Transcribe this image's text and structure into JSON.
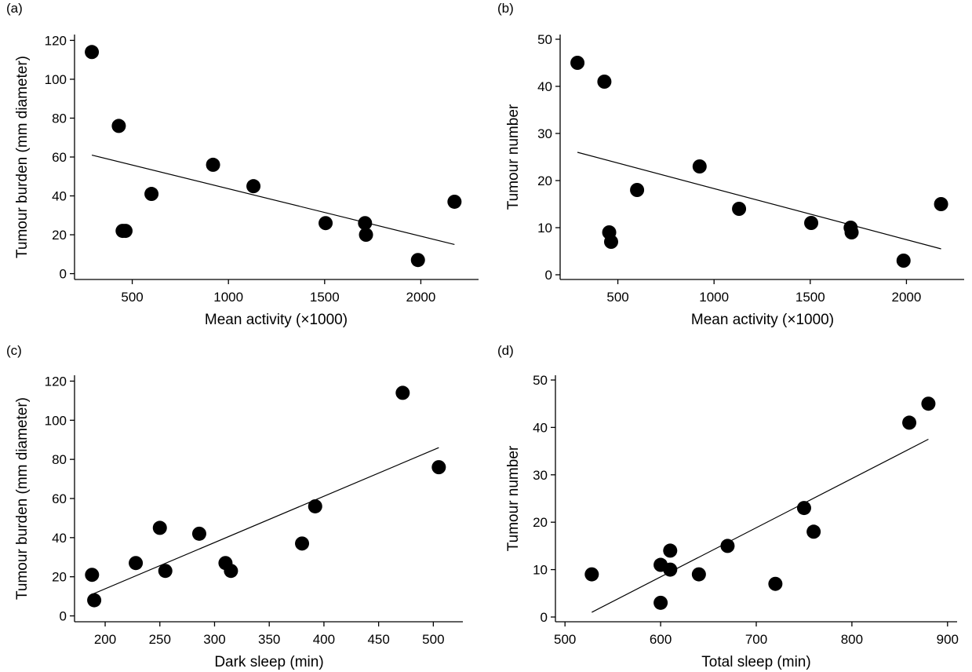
{
  "chart_data": [
    {
      "type": "scatter",
      "panel_label": "(a)",
      "xlabel": "Mean activity (×1000)",
      "ylabel": "Tumour burden (mm diameter)",
      "xlim": [
        200,
        2300
      ],
      "ylim": [
        -3,
        123
      ],
      "xticks": [
        500,
        1000,
        1500,
        2000
      ],
      "yticks": [
        0,
        20,
        40,
        60,
        80,
        100,
        120
      ],
      "series": [
        {
          "x": [
            290,
            430,
            450,
            465,
            600,
            920,
            1130,
            1505,
            1710,
            1715,
            1985,
            2175
          ],
          "y": [
            114,
            76,
            22,
            22,
            41,
            56,
            45,
            26,
            26,
            20,
            7,
            37
          ],
          "trendline": {
            "x": [
              290,
              2175
            ],
            "y": [
              61,
              15
            ]
          }
        }
      ]
    },
    {
      "type": "scatter",
      "panel_label": "(b)",
      "xlabel": "Mean activity (×1000)",
      "ylabel": "Tumour number",
      "xlim": [
        200,
        2300
      ],
      "ylim": [
        -1,
        51
      ],
      "xticks": [
        500,
        1000,
        1500,
        2000
      ],
      "yticks": [
        0,
        10,
        20,
        30,
        40,
        50
      ],
      "series": [
        {
          "x": [
            290,
            430,
            455,
            465,
            600,
            925,
            1130,
            1505,
            1710,
            1715,
            1985,
            2180
          ],
          "y": [
            45,
            41,
            9,
            7,
            18,
            23,
            14,
            11,
            10,
            9,
            3,
            15
          ],
          "trendline": {
            "x": [
              290,
              2180
            ],
            "y": [
              26,
              5.5
            ]
          }
        }
      ]
    },
    {
      "type": "scatter",
      "panel_label": "(c)",
      "xlabel": "Dark sleep (min)",
      "ylabel": "Tumour burden (mm diameter)",
      "xlim": [
        172,
        527
      ],
      "ylim": [
        -3,
        123
      ],
      "xticks": [
        200,
        250,
        300,
        350,
        400,
        450,
        500
      ],
      "yticks": [
        0,
        20,
        40,
        60,
        80,
        100,
        120
      ],
      "series": [
        {
          "x": [
            188,
            190,
            228,
            250,
            255,
            286,
            310,
            315,
            380,
            392,
            472,
            505
          ],
          "y": [
            21,
            8,
            27,
            45,
            23,
            42,
            27,
            23,
            37,
            56,
            114,
            76
          ],
          "trendline": {
            "x": [
              188,
              505
            ],
            "y": [
              11,
              86
            ]
          }
        }
      ]
    },
    {
      "type": "scatter",
      "panel_label": "(d)",
      "xlabel": "Total sleep (min)",
      "ylabel": "Tumour number",
      "xlim": [
        490,
        910
      ],
      "ylim": [
        -1,
        51
      ],
      "xticks": [
        500,
        600,
        700,
        800,
        900
      ],
      "yticks": [
        0,
        10,
        20,
        30,
        40,
        50
      ],
      "series": [
        {
          "x": [
            528,
            600,
            600,
            610,
            610,
            640,
            670,
            720,
            750,
            760,
            860,
            880
          ],
          "y": [
            9,
            11,
            3,
            14,
            10,
            9,
            15,
            7,
            23,
            18,
            41,
            45
          ],
          "trendline": {
            "x": [
              528,
              880
            ],
            "y": [
              1,
              37.5
            ]
          }
        }
      ]
    }
  ]
}
